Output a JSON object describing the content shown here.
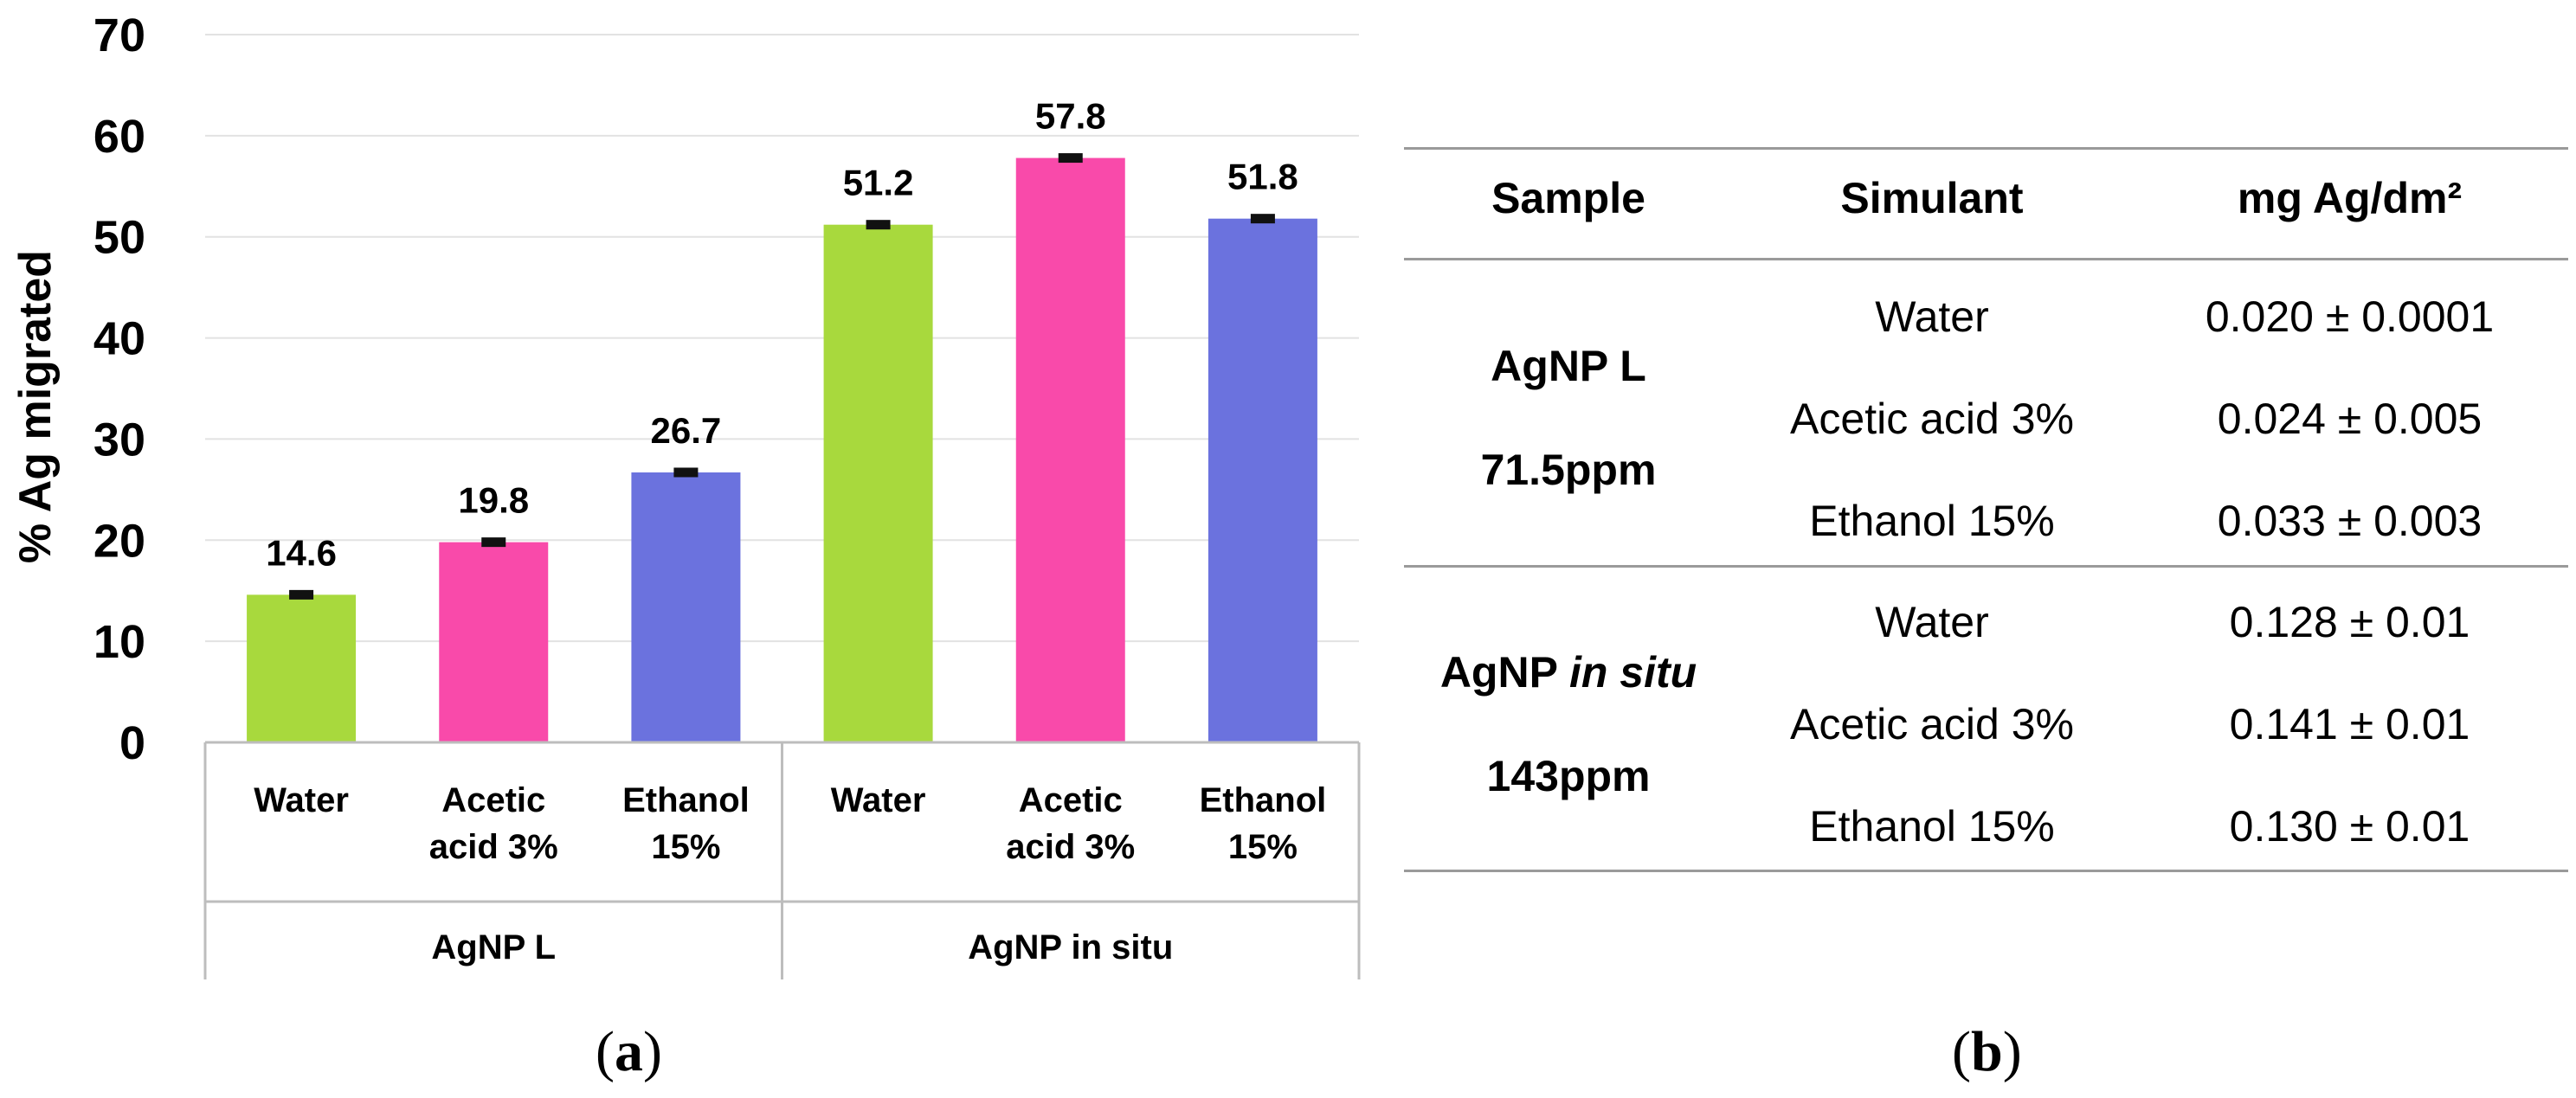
{
  "chart_data": {
    "type": "bar",
    "ylabel": "% Ag migrated",
    "ylim": [
      0,
      70
    ],
    "yticks": [
      "0",
      "10",
      "20",
      "30",
      "40",
      "50",
      "60",
      "70"
    ],
    "grid": true,
    "groups": [
      {
        "name": "AgNP  L",
        "bars": [
          {
            "label": "Water",
            "value": 14.6,
            "value_label": "14.6",
            "error": 0.3,
            "color": "#a8d93d"
          },
          {
            "label": "Acetic\nacid  3%",
            "value": 19.8,
            "value_label": "19.8",
            "error": 0.3,
            "color": "#f94aaa"
          },
          {
            "label": "Ethanol\n15%",
            "value": 26.7,
            "value_label": "26.7",
            "error": 0.3,
            "color": "#6b72de"
          }
        ]
      },
      {
        "name": "AgNP  in situ",
        "bars": [
          {
            "label": "Water",
            "value": 51.2,
            "value_label": "51.2",
            "error": 0.3,
            "color": "#a8d93d"
          },
          {
            "label": "Acetic\nacid  3%",
            "value": 57.8,
            "value_label": "57.8",
            "error": 0.3,
            "color": "#f94aaa"
          },
          {
            "label": "Ethanol\n15%",
            "value": 51.8,
            "value_label": "51.8",
            "error": 0.3,
            "color": "#6b72de"
          }
        ]
      }
    ]
  },
  "panel_labels": {
    "a": "a",
    "b": "b"
  },
  "table": {
    "headers": {
      "sample": "Sample",
      "simulant": "Simulant",
      "value": "mg Ag/dm²"
    },
    "groups": [
      {
        "sample_line1": "AgNP L",
        "sample_line2": "71.5ppm",
        "rows": [
          {
            "simulant": "Water",
            "value": "0.020 ± 0.0001"
          },
          {
            "simulant": "Acetic acid 3%",
            "value": "0.024 ± 0.005"
          },
          {
            "simulant": "Ethanol 15%",
            "value": "0.033 ± 0.003"
          }
        ]
      },
      {
        "sample_line1": "AgNP ",
        "sample_line1_italic": "in situ",
        "sample_line2": "143ppm",
        "rows": [
          {
            "simulant": "Water",
            "value": "0.128 ± 0.01"
          },
          {
            "simulant": "Acetic acid 3%",
            "value": "0.141 ± 0.01"
          },
          {
            "simulant": "Ethanol 15%",
            "value": "0.130 ± 0.01"
          }
        ]
      }
    ]
  }
}
